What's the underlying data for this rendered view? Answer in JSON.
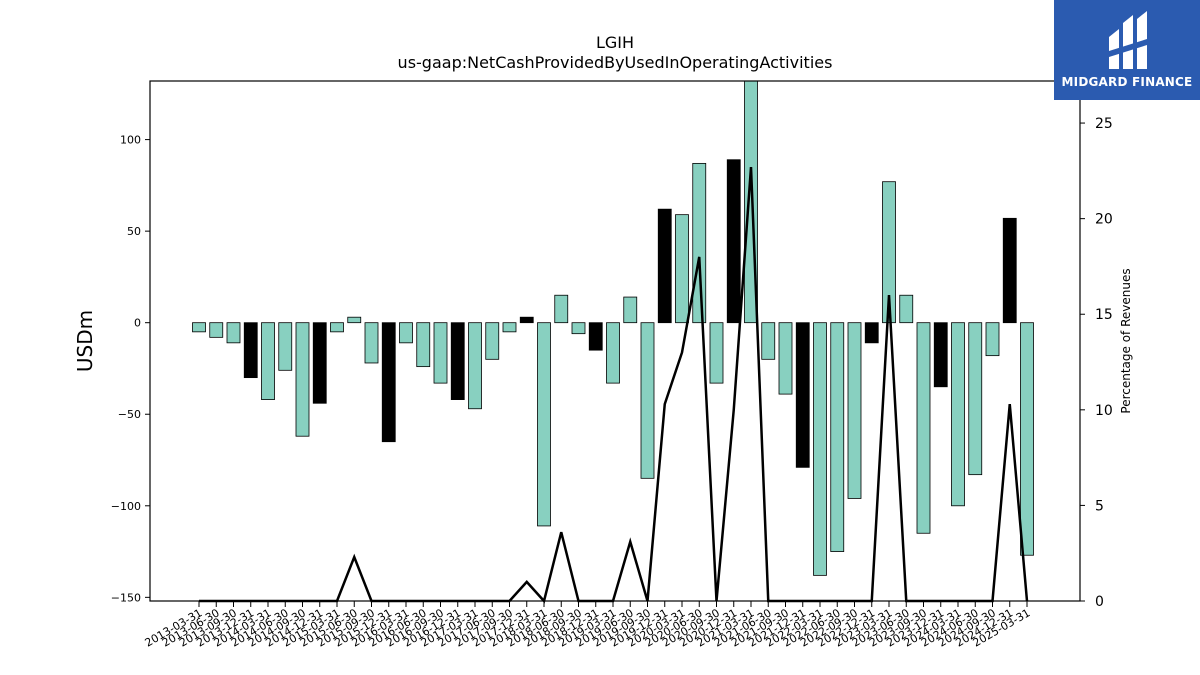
{
  "chart_data": {
    "type": "bar",
    "title": "LGIH",
    "subtitle": "us-gaap:NetCashProvidedByUsedInOperatingActivities",
    "ylabel": "USDm",
    "y2label": "Percentage of Revenues",
    "ylim": [
      -152,
      132
    ],
    "y2lim": [
      0,
      27.2
    ],
    "yticks": [
      -150,
      -100,
      -50,
      0,
      50,
      100
    ],
    "y2ticks": [
      0,
      5,
      10,
      15,
      20,
      25
    ],
    "categories": [
      "2013-03-31",
      "2013-06-30",
      "2013-09-30",
      "2013-12-31",
      "2014-03-31",
      "2014-06-30",
      "2014-09-30",
      "2014-12-31",
      "2015-03-31",
      "2015-06-30",
      "2015-09-30",
      "2015-12-31",
      "2016-03-31",
      "2016-06-30",
      "2016-09-30",
      "2016-12-31",
      "2017-03-31",
      "2017-06-30",
      "2017-09-30",
      "2017-12-31",
      "2018-03-31",
      "2018-06-30",
      "2018-09-30",
      "2018-12-31",
      "2019-03-31",
      "2019-06-30",
      "2019-09-30",
      "2019-12-31",
      "2020-03-31",
      "2020-06-30",
      "2020-09-30",
      "2020-12-31",
      "2021-03-31",
      "2021-06-30",
      "2021-09-30",
      "2021-12-31",
      "2022-03-31",
      "2022-06-30",
      "2022-09-30",
      "2022-12-31",
      "2023-03-31",
      "2023-06-30",
      "2023-09-30",
      "2023-12-31",
      "2024-03-31",
      "2024-06-30",
      "2024-09-30",
      "2024-12-31",
      "2025-03-31"
    ],
    "series": [
      {
        "type": "bar",
        "values": [
          -5,
          -8,
          -11,
          -30,
          -42,
          -26,
          -62,
          -44,
          -5,
          3,
          -22,
          -65,
          -11,
          -24,
          -33,
          -42,
          -47,
          -20,
          -5,
          3,
          -111,
          15,
          -6,
          -15,
          -33,
          14,
          -85,
          62,
          59,
          87,
          -33,
          89,
          136,
          -20,
          -39,
          -79,
          -138,
          -125,
          -96,
          -11,
          77,
          15,
          -115,
          -35,
          -100,
          -83,
          -18,
          57,
          -127
        ],
        "highlight": [
          false,
          false,
          false,
          true,
          false,
          false,
          false,
          true,
          false,
          false,
          false,
          true,
          false,
          false,
          false,
          true,
          false,
          false,
          false,
          true,
          false,
          false,
          false,
          true,
          false,
          false,
          false,
          true,
          false,
          false,
          false,
          true,
          false,
          false,
          false,
          true,
          false,
          false,
          false,
          true,
          false,
          false,
          false,
          true,
          false,
          false,
          false,
          true,
          false
        ]
      },
      {
        "type": "line",
        "axis": "right",
        "values": [
          0,
          0,
          0,
          0,
          0,
          0,
          0,
          0,
          0,
          2.3,
          0,
          0,
          0,
          0,
          0,
          0,
          0,
          0,
          0,
          1.0,
          0,
          3.6,
          0,
          0,
          0,
          3.1,
          0,
          10.3,
          13.0,
          18.0,
          0,
          10.0,
          22.7,
          0,
          0,
          0,
          0,
          0,
          0,
          0,
          16.0,
          0,
          0,
          0,
          0,
          0,
          0,
          10.3,
          0
        ]
      }
    ],
    "colors": {
      "bar": "#88d0c0",
      "highlight": "#000000",
      "line": "#000000",
      "edge": "#000000"
    },
    "grid": false
  },
  "logo": {
    "text": "MIDGARD FINANCE"
  }
}
